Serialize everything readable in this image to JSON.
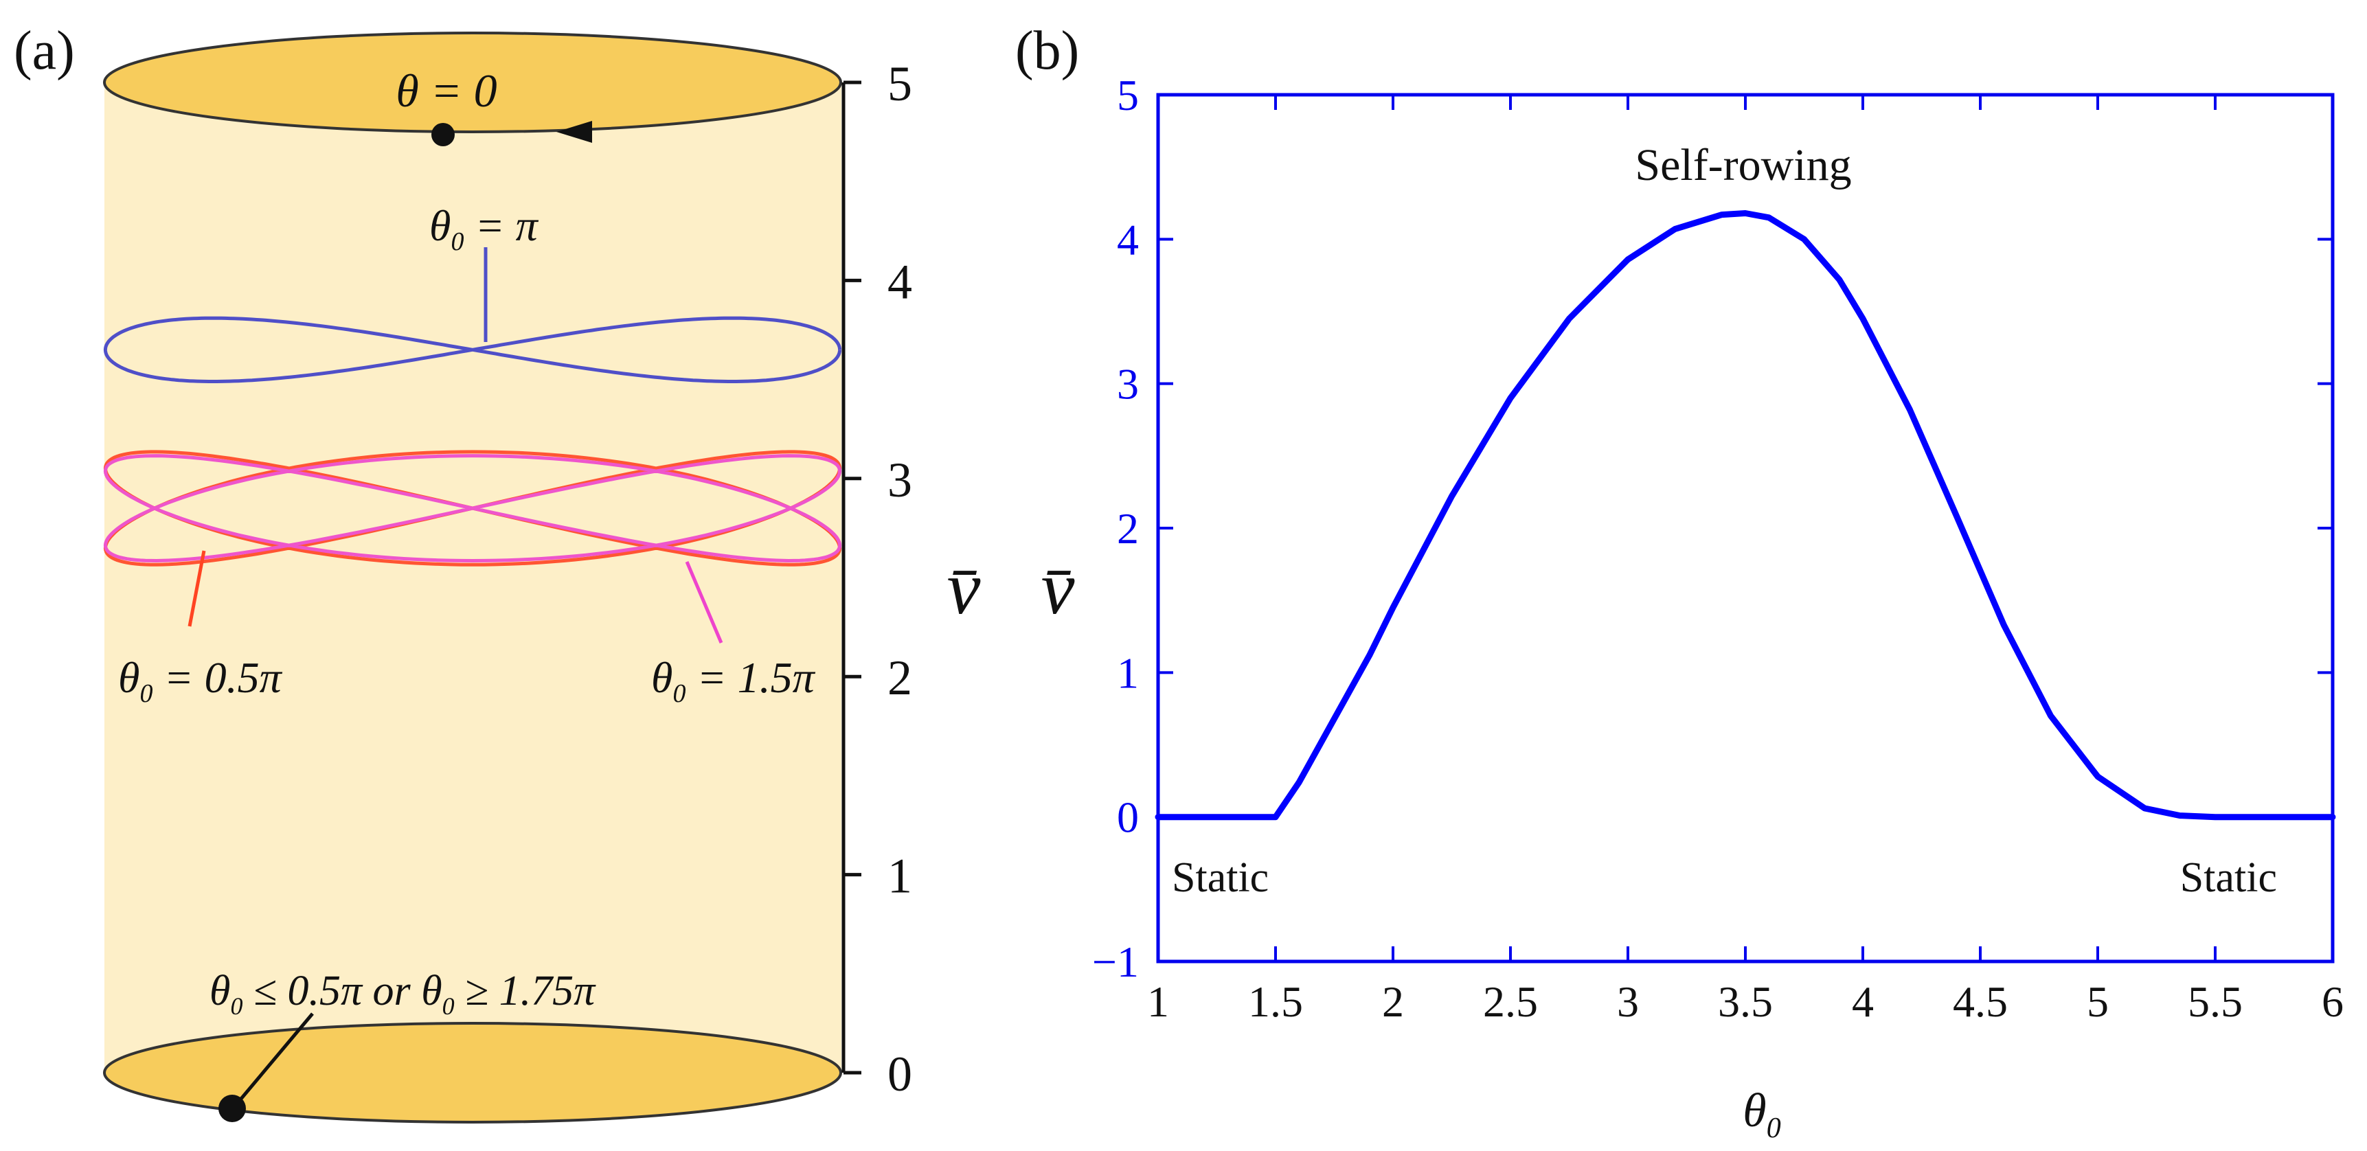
{
  "panel_a": {
    "label": "(a)",
    "top_label": "θ = 0",
    "annotations": {
      "pi": {
        "prefix": "θ",
        "sub": "0",
        "text": " = π"
      },
      "half": {
        "prefix": "θ",
        "sub": "0",
        "text": " = 0.5π"
      },
      "onehalf": {
        "prefix": "θ",
        "sub": "0",
        "text": " = 1.5π"
      },
      "bottom": {
        "p1": "θ",
        "s1": "0",
        "t1": " ≤ 0.5π  or  ",
        "p2": "θ",
        "s2": "0",
        "t2": " ≥ 1.75π"
      }
    },
    "axis": {
      "min": 0,
      "max": 5,
      "ticks": [
        "0",
        "1",
        "2",
        "3",
        "4",
        "5"
      ],
      "label": "v̄"
    },
    "trajectories": [
      {
        "theta0": "π",
        "color": "#4f4fc8",
        "level": 3.65,
        "amp": 0.32,
        "half": 1.85,
        "frequency": 1
      },
      {
        "theta0": "0.5π",
        "color": "#ff5533",
        "level": 2.85,
        "amp": 0.57,
        "half": 1.85,
        "frequency": 1.5
      },
      {
        "theta0": "1.5π",
        "color": "#ee55cc",
        "level": 2.85,
        "amp": 0.53,
        "half": 1.85,
        "frequency": 1.5
      }
    ],
    "colors": {
      "cylinder_body": "#fdefc8",
      "cylinder_cap": "#f7cc5c",
      "cap_stroke": "#333333"
    }
  },
  "panel_b": {
    "label": "(b)",
    "curve_label": "Self-rowing",
    "static_left": "Static",
    "static_right": "Static",
    "xlabel": {
      "base": "θ",
      "sub": "0"
    },
    "ylabel": "v̄",
    "axis_color": "#0000ee",
    "line_color": "#0000ff"
  },
  "chart_data": {
    "type": "line",
    "title": "",
    "xlabel": "θ0",
    "ylabel": "v̄",
    "xlim": [
      1,
      6
    ],
    "ylim": [
      -1,
      5
    ],
    "xticks": [
      "1",
      "1.5",
      "2",
      "2.5",
      "3",
      "3.5",
      "4",
      "4.5",
      "5",
      "5.5",
      "6"
    ],
    "yticks": [
      "−1",
      "0",
      "1",
      "2",
      "3",
      "4",
      "5"
    ],
    "grid": false,
    "series": [
      {
        "x": [
          1.0,
          1.25,
          1.5,
          1.6,
          1.75,
          1.9,
          2.0,
          2.25,
          2.5,
          2.75,
          3.0,
          3.2,
          3.4,
          3.5,
          3.6,
          3.75,
          3.9,
          4.0,
          4.2,
          4.4,
          4.6,
          4.8,
          5.0,
          5.2,
          5.35,
          5.5,
          5.75,
          6.0
        ],
        "y": [
          0,
          0,
          0,
          0.24,
          0.68,
          1.12,
          1.45,
          2.22,
          2.9,
          3.45,
          3.86,
          4.07,
          4.17,
          4.18,
          4.15,
          4.0,
          3.72,
          3.45,
          2.82,
          2.08,
          1.33,
          0.7,
          0.28,
          0.06,
          0.01,
          0,
          0,
          0
        ]
      }
    ]
  }
}
